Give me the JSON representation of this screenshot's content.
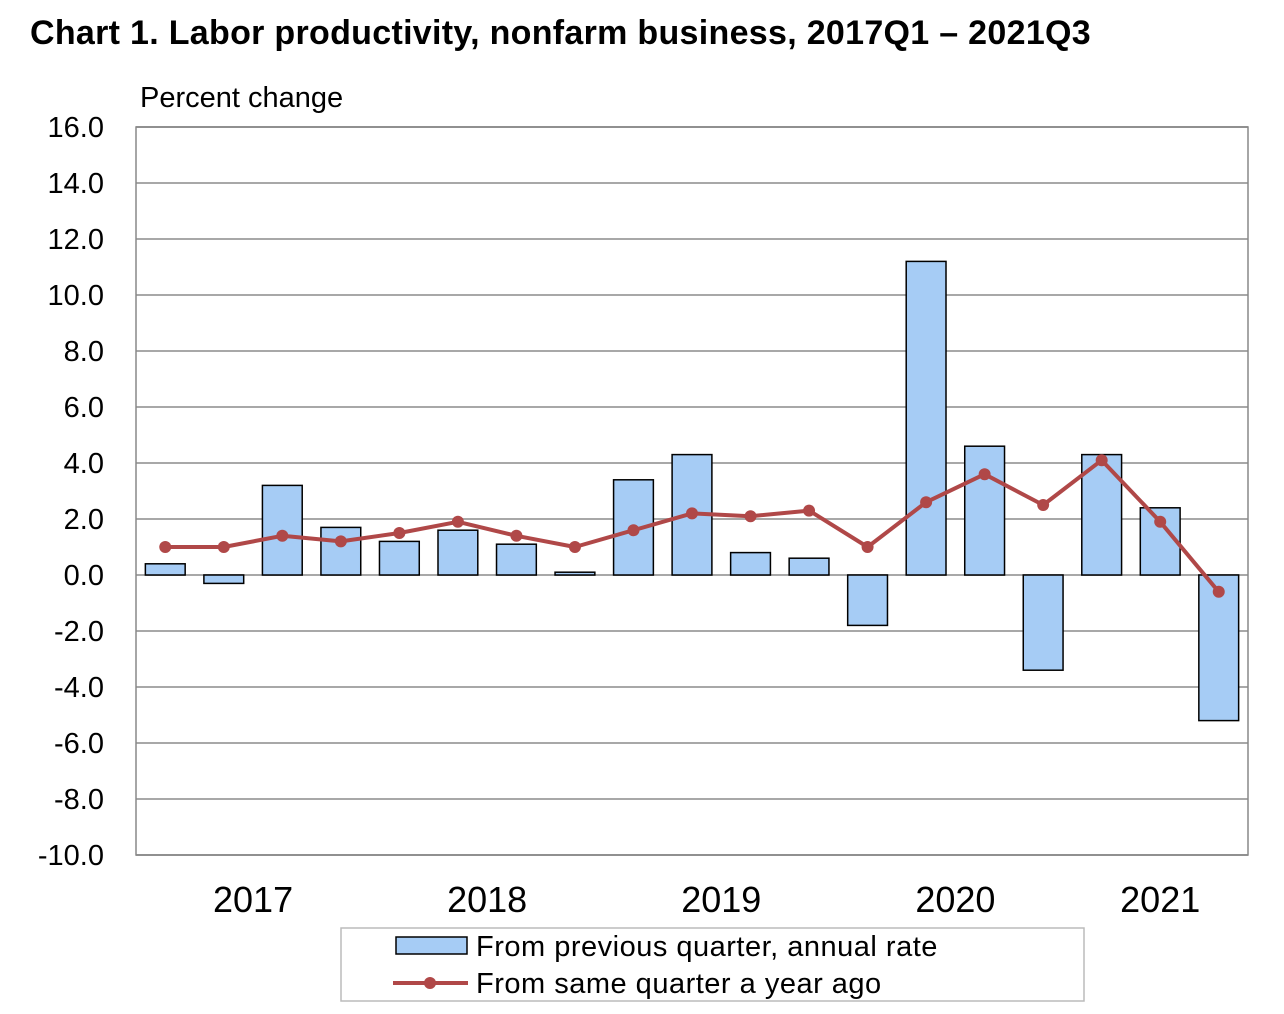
{
  "title": "Chart  1. Labor productivity, nonfarm business, 2017Q1 – 2021Q3",
  "chart_data": {
    "type": "bar",
    "title": "Chart  1. Labor productivity, nonfarm business, 2017Q1 – 2021Q3",
    "ylabel": "Percent change",
    "xlabel": "",
    "ylim": [
      -10.0,
      16.0
    ],
    "yticks": [
      "16.0",
      "14.0",
      "12.0",
      "10.0",
      "8.0",
      "6.0",
      "4.0",
      "2.0",
      "0.0",
      "-2.0",
      "-4.0",
      "-6.0",
      "-8.0",
      "-10.0"
    ],
    "ytick_values": [
      16,
      14,
      12,
      10,
      8,
      6,
      4,
      2,
      0,
      -2,
      -4,
      -6,
      -8,
      -10
    ],
    "categories": [
      "2017Q1",
      "2017Q2",
      "2017Q3",
      "2017Q4",
      "2018Q1",
      "2018Q2",
      "2018Q3",
      "2018Q4",
      "2019Q1",
      "2019Q2",
      "2019Q3",
      "2019Q4",
      "2020Q1",
      "2020Q2",
      "2020Q3",
      "2020Q4",
      "2021Q1",
      "2021Q2",
      "2021Q3"
    ],
    "year_labels": [
      {
        "label": "2017",
        "center_index": 1.5
      },
      {
        "label": "2018",
        "center_index": 5.5
      },
      {
        "label": "2019",
        "center_index": 9.5
      },
      {
        "label": "2020",
        "center_index": 13.5
      },
      {
        "label": "2021",
        "center_index": 17
      }
    ],
    "series": [
      {
        "name": "From previous quarter, annual rate",
        "type": "bar",
        "color": "#a6ccf5",
        "values": [
          0.4,
          -0.3,
          3.2,
          1.7,
          1.2,
          1.6,
          1.1,
          0.1,
          3.4,
          4.3,
          0.8,
          0.6,
          -1.8,
          11.2,
          4.6,
          -3.4,
          4.3,
          2.4,
          -5.2
        ]
      },
      {
        "name": "From same quarter a year ago",
        "type": "line",
        "color": "#b04848",
        "values": [
          1.0,
          1.0,
          1.4,
          1.2,
          1.5,
          1.9,
          1.4,
          1.0,
          1.6,
          2.2,
          2.1,
          2.3,
          1.0,
          2.6,
          3.6,
          2.5,
          4.1,
          1.9,
          -0.6
        ]
      }
    ],
    "grid": true,
    "legend_position": "bottom"
  }
}
